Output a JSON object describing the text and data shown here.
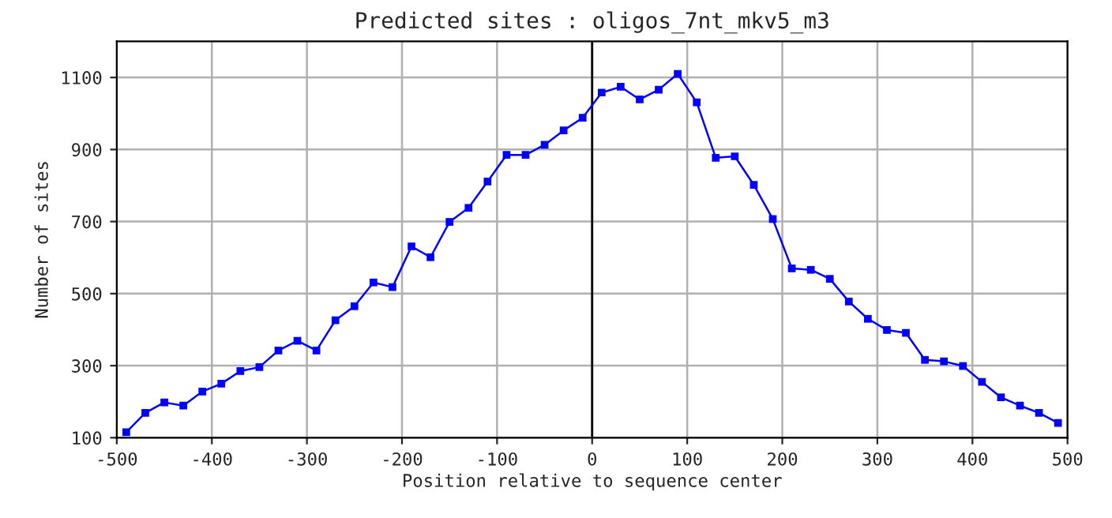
{
  "chart_data": {
    "type": "line",
    "title": "Predicted sites : oligos_7nt_mkv5_m3",
    "xlabel": "Position relative to sequence center",
    "ylabel": "Number of sites",
    "x": [
      -490,
      -470,
      -450,
      -430,
      -410,
      -390,
      -370,
      -350,
      -330,
      -310,
      -290,
      -270,
      -250,
      -230,
      -210,
      -190,
      -170,
      -150,
      -130,
      -110,
      -90,
      -70,
      -50,
      -30,
      -10,
      10,
      30,
      50,
      70,
      90,
      110,
      130,
      150,
      170,
      190,
      210,
      230,
      250,
      270,
      290,
      310,
      330,
      350,
      370,
      390,
      410,
      430,
      450,
      470,
      490
    ],
    "series": [
      {
        "color": "#0000ff",
        "values": [
          115,
          169,
          198,
          189,
          228,
          250,
          285,
          296,
          342,
          369,
          342,
          426,
          465,
          531,
          518,
          631,
          601,
          699,
          738,
          811,
          885,
          885,
          913,
          953,
          988,
          1058,
          1074,
          1039,
          1066,
          1110,
          1031,
          877,
          881,
          802,
          707,
          570,
          566,
          541,
          478,
          430,
          399,
          391,
          316,
          312,
          299,
          255,
          212,
          189,
          169,
          141
        ]
      }
    ],
    "xlim": [
      -500,
      500
    ],
    "xticks": [
      -500,
      -400,
      -300,
      -200,
      -100,
      0,
      100,
      200,
      300,
      400,
      500
    ],
    "ylim": [
      100,
      1200
    ],
    "yticks": [
      100,
      300,
      500,
      700,
      900,
      1100
    ],
    "ref_lines": [
      {
        "axis": "x",
        "value": 0,
        "color": "#000000"
      }
    ],
    "grid": true,
    "marker": "square",
    "line_style": "solid",
    "legend": false
  }
}
